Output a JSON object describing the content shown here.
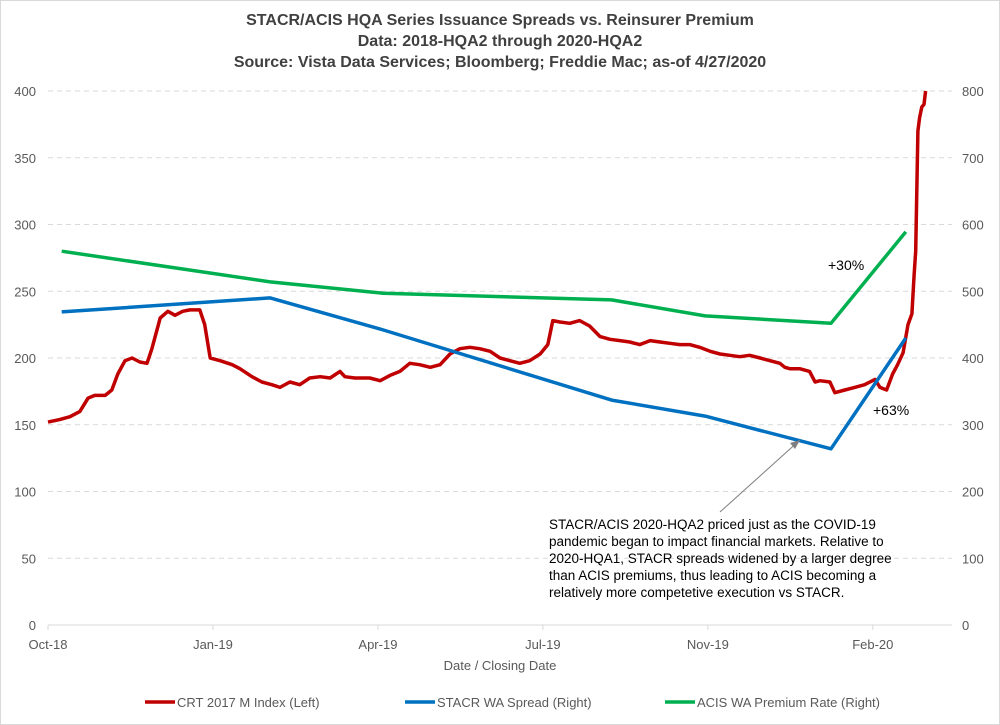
{
  "chart_data": {
    "type": "line",
    "title": [
      "STACR/ACIS HQA Series Issuance Spreads vs. Reinsurer Premium",
      "Data: 2018-HQA2 through 2020-HQA2",
      "Source: Vista Data Services; Bloomberg; Freddie Mac; as-of 4/27/2020"
    ],
    "xlabel": "Date / Closing Date",
    "x_units": "months since Oct-18",
    "xlim": [
      0,
      16.44
    ],
    "x_ticks": [
      {
        "x": 0,
        "label": "Oct-18"
      },
      {
        "x": 3,
        "label": "Jan-19"
      },
      {
        "x": 6,
        "label": "Apr-19"
      },
      {
        "x": 9,
        "label": "Jul-19"
      },
      {
        "x": 12,
        "label": "Nov-19"
      },
      {
        "x": 15,
        "label": "Feb-20"
      }
    ],
    "y_left": {
      "lim": [
        0,
        400
      ],
      "ticks": [
        "0",
        "50",
        "100",
        "150",
        "200",
        "250",
        "300",
        "350",
        "400"
      ]
    },
    "y_right": {
      "lim": [
        0,
        800
      ],
      "ticks": [
        "0",
        "100",
        "200",
        "300",
        "400",
        "500",
        "600",
        "700",
        "800"
      ]
    },
    "grid": true,
    "legend_position": "bottom",
    "series": [
      {
        "name": "CRT 2017 M Index (Left)",
        "axis": "left",
        "color": "#c00000",
        "x": [
          0,
          0.22,
          0.4,
          0.58,
          0.73,
          0.85,
          1.04,
          1.16,
          1.27,
          1.4,
          1.53,
          1.67,
          1.8,
          1.89,
          2.04,
          2.18,
          2.31,
          2.45,
          2.58,
          2.76,
          2.85,
          2.95,
          3.13,
          3.35,
          3.49,
          3.71,
          3.89,
          4.07,
          4.22,
          4.4,
          4.58,
          4.76,
          4.95,
          5.13,
          5.31,
          5.4,
          5.58,
          5.85,
          6.04,
          6.22,
          6.4,
          6.58,
          6.76,
          6.95,
          7.13,
          7.31,
          7.49,
          7.67,
          7.85,
          8.04,
          8.22,
          8.4,
          8.58,
          8.76,
          8.95,
          9.09,
          9.18,
          9.31,
          9.49,
          9.67,
          9.85,
          10.04,
          10.22,
          10.4,
          10.58,
          10.76,
          10.95,
          11.13,
          11.31,
          11.49,
          11.67,
          11.85,
          12.04,
          12.22,
          12.4,
          12.58,
          12.76,
          12.95,
          13.13,
          13.31,
          13.4,
          13.49,
          13.67,
          13.85,
          13.95,
          14.04,
          14.22,
          14.31,
          14.49,
          14.67,
          14.85,
          15.04,
          15.13,
          15.25,
          15.36,
          15.45,
          15.55,
          15.64,
          15.71,
          15.75,
          15.78,
          15.82,
          15.85,
          15.89,
          15.93,
          15.96
        ],
        "y": [
          152,
          154,
          156,
          160,
          170,
          172,
          172,
          176,
          188,
          198,
          200,
          197,
          196,
          207,
          230,
          235,
          232,
          235,
          236,
          236,
          225,
          200,
          198,
          195,
          192,
          186,
          182,
          180,
          178,
          182,
          180,
          185,
          186,
          185,
          190,
          186,
          185,
          185,
          183,
          187,
          190,
          196,
          195,
          193,
          195,
          203,
          207,
          208,
          207,
          205,
          200,
          198,
          196,
          198,
          203,
          210,
          228,
          227,
          226,
          228,
          224,
          216,
          214,
          213,
          212,
          210,
          213,
          212,
          211,
          210,
          210,
          208,
          205,
          203,
          202,
          201,
          202,
          200,
          198,
          196,
          193,
          192,
          192,
          190,
          182,
          183,
          182,
          174,
          176,
          178,
          180,
          184,
          178,
          176,
          188,
          195,
          204,
          225,
          233,
          262,
          280,
          370,
          380,
          388,
          390,
          400
        ]
      },
      {
        "name": "STACR WA Spread (Right)",
        "axis": "right",
        "color": "#0070c0",
        "x": [
          0.25,
          4.04,
          6.1,
          10.25,
          11.95,
          14.24,
          15.6
        ],
        "y": [
          469,
          490,
          442,
          337,
          313,
          264,
          430
        ]
      },
      {
        "name": "ACIS WA Premium Rate (Right)",
        "axis": "right",
        "color": "#00b050",
        "x": [
          0.25,
          4.04,
          6.1,
          10.25,
          11.95,
          14.24,
          15.6
        ],
        "y": [
          560,
          514,
          497,
          487,
          463,
          452,
          589
        ]
      }
    ],
    "annotations": {
      "acis_change": "+30%",
      "stacr_change": "+63%",
      "note": [
        "STACR/ACIS 2020-HQA2 priced just as the COVID-19",
        "pandemic began to impact financial markets.  Relative to",
        "2020-HQA1, STACR spreads widened by a larger degree",
        "than ACIS premiums, thus leading to ACIS becoming a",
        "relatively more competetive execution vs STACR."
      ]
    }
  }
}
